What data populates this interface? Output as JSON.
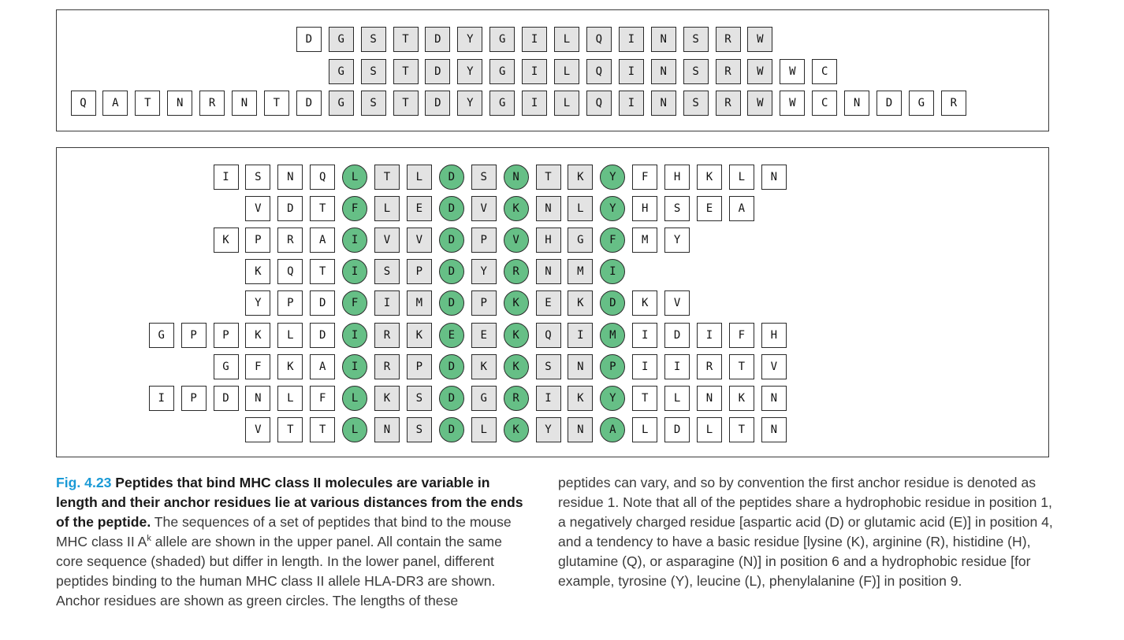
{
  "upper_panel": {
    "rows": [
      {
        "offset": 7,
        "residues": [
          "D",
          "G",
          "S",
          "T",
          "D",
          "Y",
          "G",
          "I",
          "L",
          "Q",
          "I",
          "N",
          "S",
          "R",
          "W"
        ],
        "core_start": 1,
        "core_end": 14
      },
      {
        "offset": 8,
        "residues": [
          "G",
          "S",
          "T",
          "D",
          "Y",
          "G",
          "I",
          "L",
          "Q",
          "I",
          "N",
          "S",
          "R",
          "W",
          "W",
          "C"
        ],
        "core_start": 0,
        "core_end": 13
      },
      {
        "offset": 0,
        "residues": [
          "Q",
          "A",
          "T",
          "N",
          "R",
          "N",
          "T",
          "D",
          "G",
          "S",
          "T",
          "D",
          "Y",
          "G",
          "I",
          "L",
          "Q",
          "I",
          "N",
          "S",
          "R",
          "W",
          "W",
          "C",
          "N",
          "D",
          "G",
          "R"
        ],
        "core_start": 8,
        "core_end": 21
      }
    ]
  },
  "lower_panel": {
    "anchor_positions": [
      1,
      4,
      6,
      9
    ],
    "rows": [
      {
        "residues": [
          "I",
          "S",
          "N",
          "Q",
          "L",
          "T",
          "L",
          "D",
          "S",
          "N",
          "T",
          "K",
          "Y",
          "F",
          "H",
          "K",
          "L",
          "N"
        ],
        "anchor_index": 4
      },
      {
        "residues": [
          "V",
          "D",
          "T",
          "F",
          "L",
          "E",
          "D",
          "V",
          "K",
          "N",
          "L",
          "Y",
          "H",
          "S",
          "E",
          "A"
        ],
        "anchor_index": 3
      },
      {
        "residues": [
          "K",
          "P",
          "R",
          "A",
          "I",
          "V",
          "V",
          "D",
          "P",
          "V",
          "H",
          "G",
          "F",
          "M",
          "Y"
        ],
        "anchor_index": 4
      },
      {
        "residues": [
          "K",
          "Q",
          "T",
          "I",
          "S",
          "P",
          "D",
          "Y",
          "R",
          "N",
          "M",
          "I"
        ],
        "anchor_index": 3
      },
      {
        "residues": [
          "Y",
          "P",
          "D",
          "F",
          "I",
          "M",
          "D",
          "P",
          "K",
          "E",
          "K",
          "D",
          "K",
          "V"
        ],
        "anchor_index": 3
      },
      {
        "residues": [
          "G",
          "P",
          "P",
          "K",
          "L",
          "D",
          "I",
          "R",
          "K",
          "E",
          "E",
          "K",
          "Q",
          "I",
          "M",
          "I",
          "D",
          "I",
          "F",
          "H"
        ],
        "anchor_index": 6
      },
      {
        "residues": [
          "G",
          "F",
          "K",
          "A",
          "I",
          "R",
          "P",
          "D",
          "K",
          "K",
          "S",
          "N",
          "P",
          "I",
          "I",
          "R",
          "T",
          "V"
        ],
        "anchor_index": 4
      },
      {
        "residues": [
          "I",
          "P",
          "D",
          "N",
          "L",
          "F",
          "L",
          "K",
          "S",
          "D",
          "G",
          "R",
          "I",
          "K",
          "Y",
          "T",
          "L",
          "N",
          "K",
          "N"
        ],
        "anchor_index": 6
      },
      {
        "residues": [
          "V",
          "T",
          "T",
          "L",
          "N",
          "S",
          "D",
          "L",
          "K",
          "Y",
          "N",
          "A",
          "L",
          "D",
          "L",
          "T",
          "N"
        ],
        "anchor_index": 3
      }
    ]
  },
  "colors": {
    "anchor_fill": "#66bf86",
    "core_shade": "#e3e3e3",
    "figure_number": "#1a9ad6"
  },
  "caption": {
    "figure_number": "Fig. 4.23",
    "title": "Peptides that bind MHC class II molecules are variable in length and their anchor residues lie at various distances from the ends of the peptide.",
    "body_1": "The sequences of a set of peptides that bind to the mouse MHC class II A",
    "superscript": "k",
    "body_2": "allele are shown in the upper panel. All contain the same core sequence (shaded) but differ in length. In the lower panel, different peptides binding to the human MHC class II allele HLA-DR3 are shown. Anchor residues are shown as green circles. The lengths of these",
    "body_3": "peptides can vary, and so by convention the first anchor residue is denoted as residue 1. Note that all of the peptides share a hydrophobic residue in position 1, a negatively charged residue [aspartic acid (D) or glutamic acid (E)] in position 4, and a tendency to have a basic residue [lysine (K), arginine (R), histidine (H), glutamine (Q), or asparagine (N)] in position 6 and a hydrophobic residue [for example, tyrosine (Y), leucine (L), phenylalanine (F)] in position 9."
  }
}
